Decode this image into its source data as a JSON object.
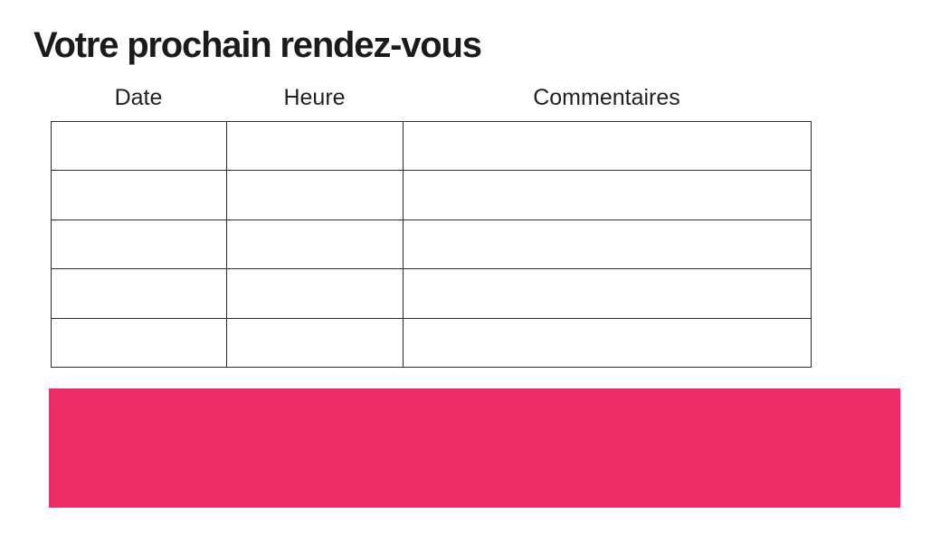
{
  "page": {
    "title": "Votre prochain rendez-vous"
  },
  "table": {
    "headers": [
      "Date",
      "Heure",
      "Commentaires"
    ],
    "rows": [
      {
        "date": "",
        "heure": "",
        "commentaires": ""
      },
      {
        "date": "",
        "heure": "",
        "commentaires": ""
      },
      {
        "date": "",
        "heure": "",
        "commentaires": ""
      },
      {
        "date": "",
        "heure": "",
        "commentaires": ""
      },
      {
        "date": "",
        "heure": "",
        "commentaires": ""
      }
    ]
  },
  "colors": {
    "accent_pink": "#ED2D67",
    "text": "#231F20",
    "table_border": "#2B2B2B",
    "background": "#FFFFFF"
  }
}
